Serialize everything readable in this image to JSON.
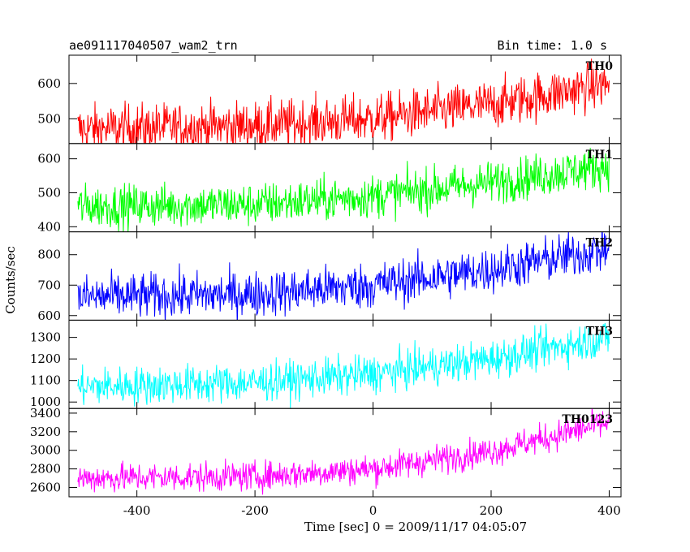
{
  "header": {
    "left": "ae091117040507_wam2_trn",
    "right": "Bin time: 1.0 s"
  },
  "chart_data": {
    "type": "line",
    "xlabel": "Time [sec] 0 = 2009/11/17 04:05:07",
    "ylabel": "Counts/sec",
    "xlim": [
      -515,
      420
    ],
    "xticks": [
      -400,
      -200,
      0,
      200,
      400
    ],
    "x_range": [
      -500,
      400
    ],
    "bin_time": 1.0,
    "grid": false,
    "panels": [
      {
        "name": "TH0",
        "color": "#ff0000",
        "ylim": [
          430,
          680
        ],
        "yticks": [
          500,
          600
        ],
        "trend": [
          [
            -500,
            470
          ],
          [
            -200,
            480
          ],
          [
            0,
            500
          ],
          [
            200,
            540
          ],
          [
            400,
            600
          ]
        ],
        "noise": 35
      },
      {
        "name": "TH1",
        "color": "#00ff00",
        "ylim": [
          385,
          645
        ],
        "yticks": [
          400,
          500,
          600
        ],
        "trend": [
          [
            -500,
            460
          ],
          [
            -200,
            465
          ],
          [
            0,
            490
          ],
          [
            200,
            530
          ],
          [
            400,
            580
          ]
        ],
        "noise": 32
      },
      {
        "name": "TH2",
        "color": "#0000ff",
        "ylim": [
          585,
          875
        ],
        "yticks": [
          600,
          700,
          800
        ],
        "trend": [
          [
            -500,
            660
          ],
          [
            -200,
            670
          ],
          [
            0,
            700
          ],
          [
            200,
            750
          ],
          [
            400,
            820
          ]
        ],
        "noise": 38
      },
      {
        "name": "TH3",
        "color": "#00ffff",
        "ylim": [
          970,
          1380
        ],
        "yticks": [
          1000,
          1100,
          1200,
          1300
        ],
        "trend": [
          [
            -500,
            1070
          ],
          [
            -200,
            1090
          ],
          [
            0,
            1130
          ],
          [
            200,
            1200
          ],
          [
            400,
            1300
          ]
        ],
        "noise": 45
      },
      {
        "name": "TH0123",
        "color": "#ff00ff",
        "ylim": [
          2500,
          3450
        ],
        "yticks": [
          2600,
          2800,
          3000,
          3200,
          3400
        ],
        "trend": [
          [
            -500,
            2700
          ],
          [
            -200,
            2720
          ],
          [
            0,
            2800
          ],
          [
            200,
            2990
          ],
          [
            400,
            3300
          ]
        ],
        "noise": 80
      }
    ]
  }
}
